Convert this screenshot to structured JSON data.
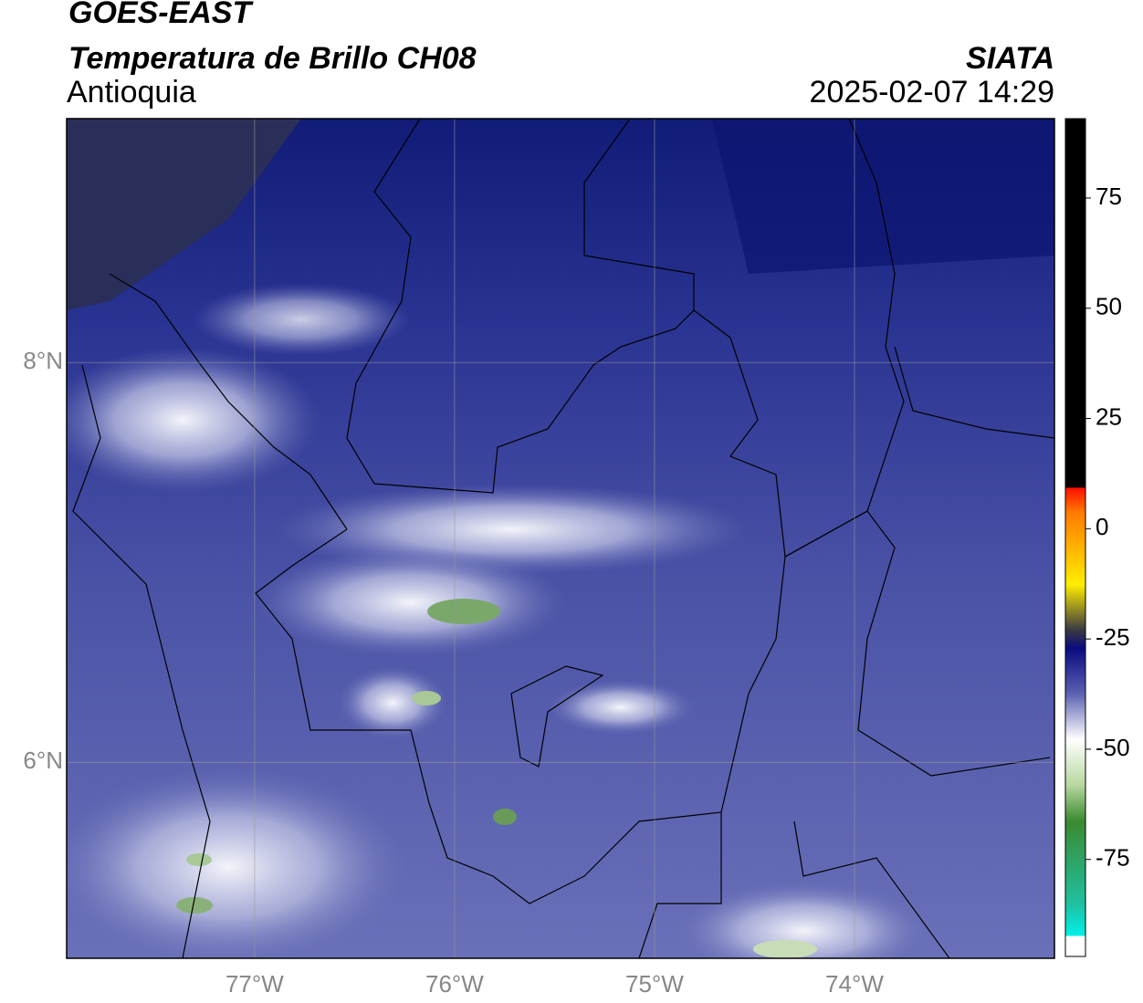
{
  "header": {
    "title": "GOES-EAST",
    "subtitle": "Temperatura de Brillo CH08",
    "region": "Antioquia",
    "source": "SIATA",
    "timestamp": "2025-02-07 14:29"
  },
  "map": {
    "xlim": [
      -77.94,
      -73.0
    ],
    "ylim": [
      5.02,
      9.22
    ],
    "xticks": [
      {
        "value": -77,
        "label": "77°W"
      },
      {
        "value": -76,
        "label": "76°W"
      },
      {
        "value": -75,
        "label": "75°W"
      },
      {
        "value": -74,
        "label": "74°W"
      }
    ],
    "yticks": [
      {
        "value": 8,
        "label": "8°N"
      },
      {
        "value": 6,
        "label": "6°N"
      }
    ],
    "grid": true
  },
  "colorbar": {
    "lim": [
      -97,
      93
    ],
    "ticks": [
      75,
      50,
      25,
      0,
      -25,
      -50,
      -75
    ]
  }
}
